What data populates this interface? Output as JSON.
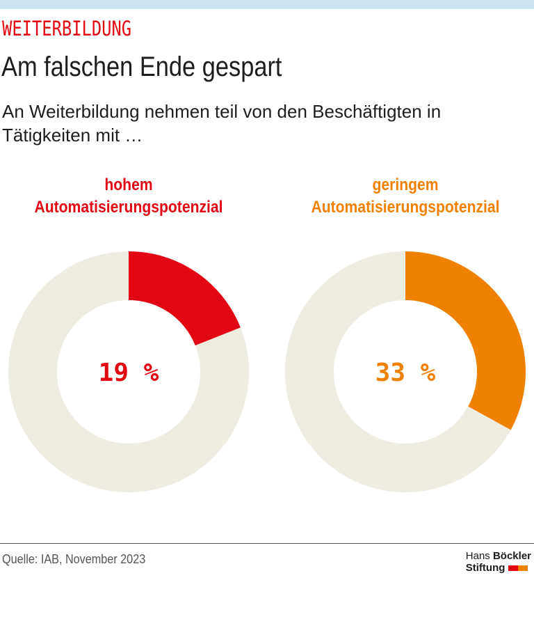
{
  "header": {
    "kicker": "WEITERBILDUNG",
    "title": "Am falschen Ende gespart",
    "subtitle": "An Weiterbildung nehmen teil von den Beschäftigten in Tätigkeiten mit …"
  },
  "chart_data": [
    {
      "type": "pie",
      "variant": "donut",
      "title_line1": "hohem",
      "title_line2": "Automatisierungspotenzial",
      "value": 19,
      "label": "19 %",
      "color": "#e30613",
      "track_color": "#efece1"
    },
    {
      "type": "pie",
      "variant": "donut",
      "title_line1": "geringem",
      "title_line2": "Automatisierungspotenzial",
      "value": 33,
      "label": "33 %",
      "color": "#f08000",
      "track_color": "#efece1"
    }
  ],
  "footer": {
    "source": "Quelle: IAB, November 2023",
    "logo_line1a": "Hans",
    "logo_line1b": "Böckler",
    "logo_line2": "Stiftung",
    "logo_colors": [
      "#e30613",
      "#f08000"
    ]
  }
}
